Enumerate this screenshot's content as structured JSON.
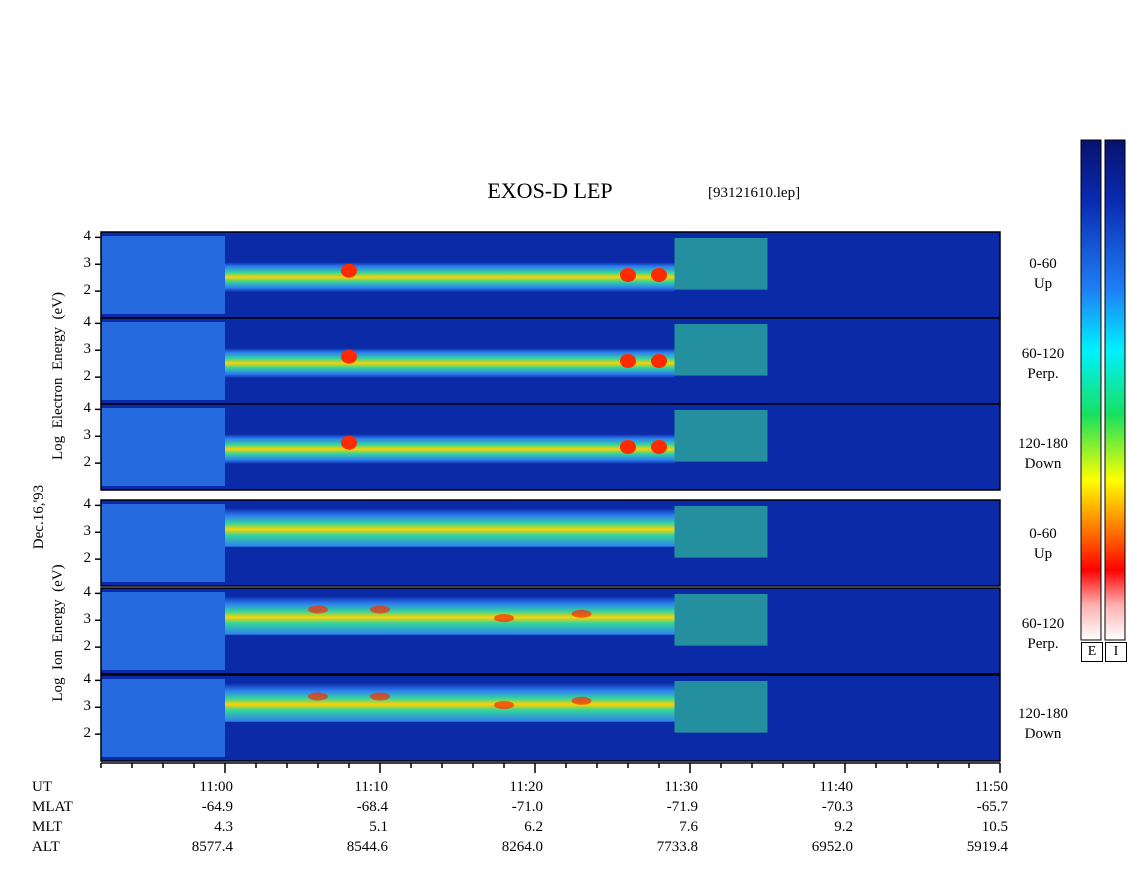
{
  "title": "EXOS-D LEP",
  "file": "[93121610.lep]",
  "date": "Dec.16,'93",
  "electron_ylabel": [
    "Log",
    "Electron",
    "Energy",
    "(eV)"
  ],
  "ion_ylabel": [
    "Log",
    "Ion",
    "Energy",
    "(eV)"
  ],
  "colorbars": [
    "E",
    "I"
  ],
  "colors": {
    "background": "#0a2aa8",
    "cool": "#2e7ff0",
    "mid": "#35d69a",
    "warm": "#ffd200",
    "hot": "#ff2a00"
  },
  "chart_data": {
    "type": "heatmap",
    "title": "EXOS-D LEP",
    "x_label": "UT",
    "time_range": [
      "10:52",
      "11:50"
    ],
    "ylim": [
      1,
      4.2
    ],
    "yticks": [
      "2",
      "3",
      "4"
    ],
    "panels": [
      {
        "group": "Electron",
        "pitch": "0-60",
        "dir": "Up"
      },
      {
        "group": "Electron",
        "pitch": "60-120",
        "dir": "Perp."
      },
      {
        "group": "Electron",
        "pitch": "120-180",
        "dir": "Down"
      },
      {
        "group": "Ion",
        "pitch": "0-60",
        "dir": "Up"
      },
      {
        "group": "Ion",
        "pitch": "60-120",
        "dir": "Perp."
      },
      {
        "group": "Ion",
        "pitch": "120-180",
        "dir": "Down"
      }
    ],
    "rows": [
      {
        "name": "UT",
        "values": [
          "11:00",
          "11:10",
          "11:20",
          "11:30",
          "11:40",
          "11:50"
        ]
      },
      {
        "name": "MLAT",
        "values": [
          "-64.9",
          "-68.4",
          "-71.0",
          "-71.9",
          "-70.3",
          "-65.7"
        ]
      },
      {
        "name": "MLT",
        "values": [
          "4.3",
          "5.1",
          "6.2",
          "7.6",
          "9.2",
          "10.5"
        ]
      },
      {
        "name": "ALT",
        "values": [
          "8577.4",
          "8544.6",
          "8264.0",
          "7733.8",
          "6952.0",
          "5919.4"
        ]
      }
    ]
  }
}
